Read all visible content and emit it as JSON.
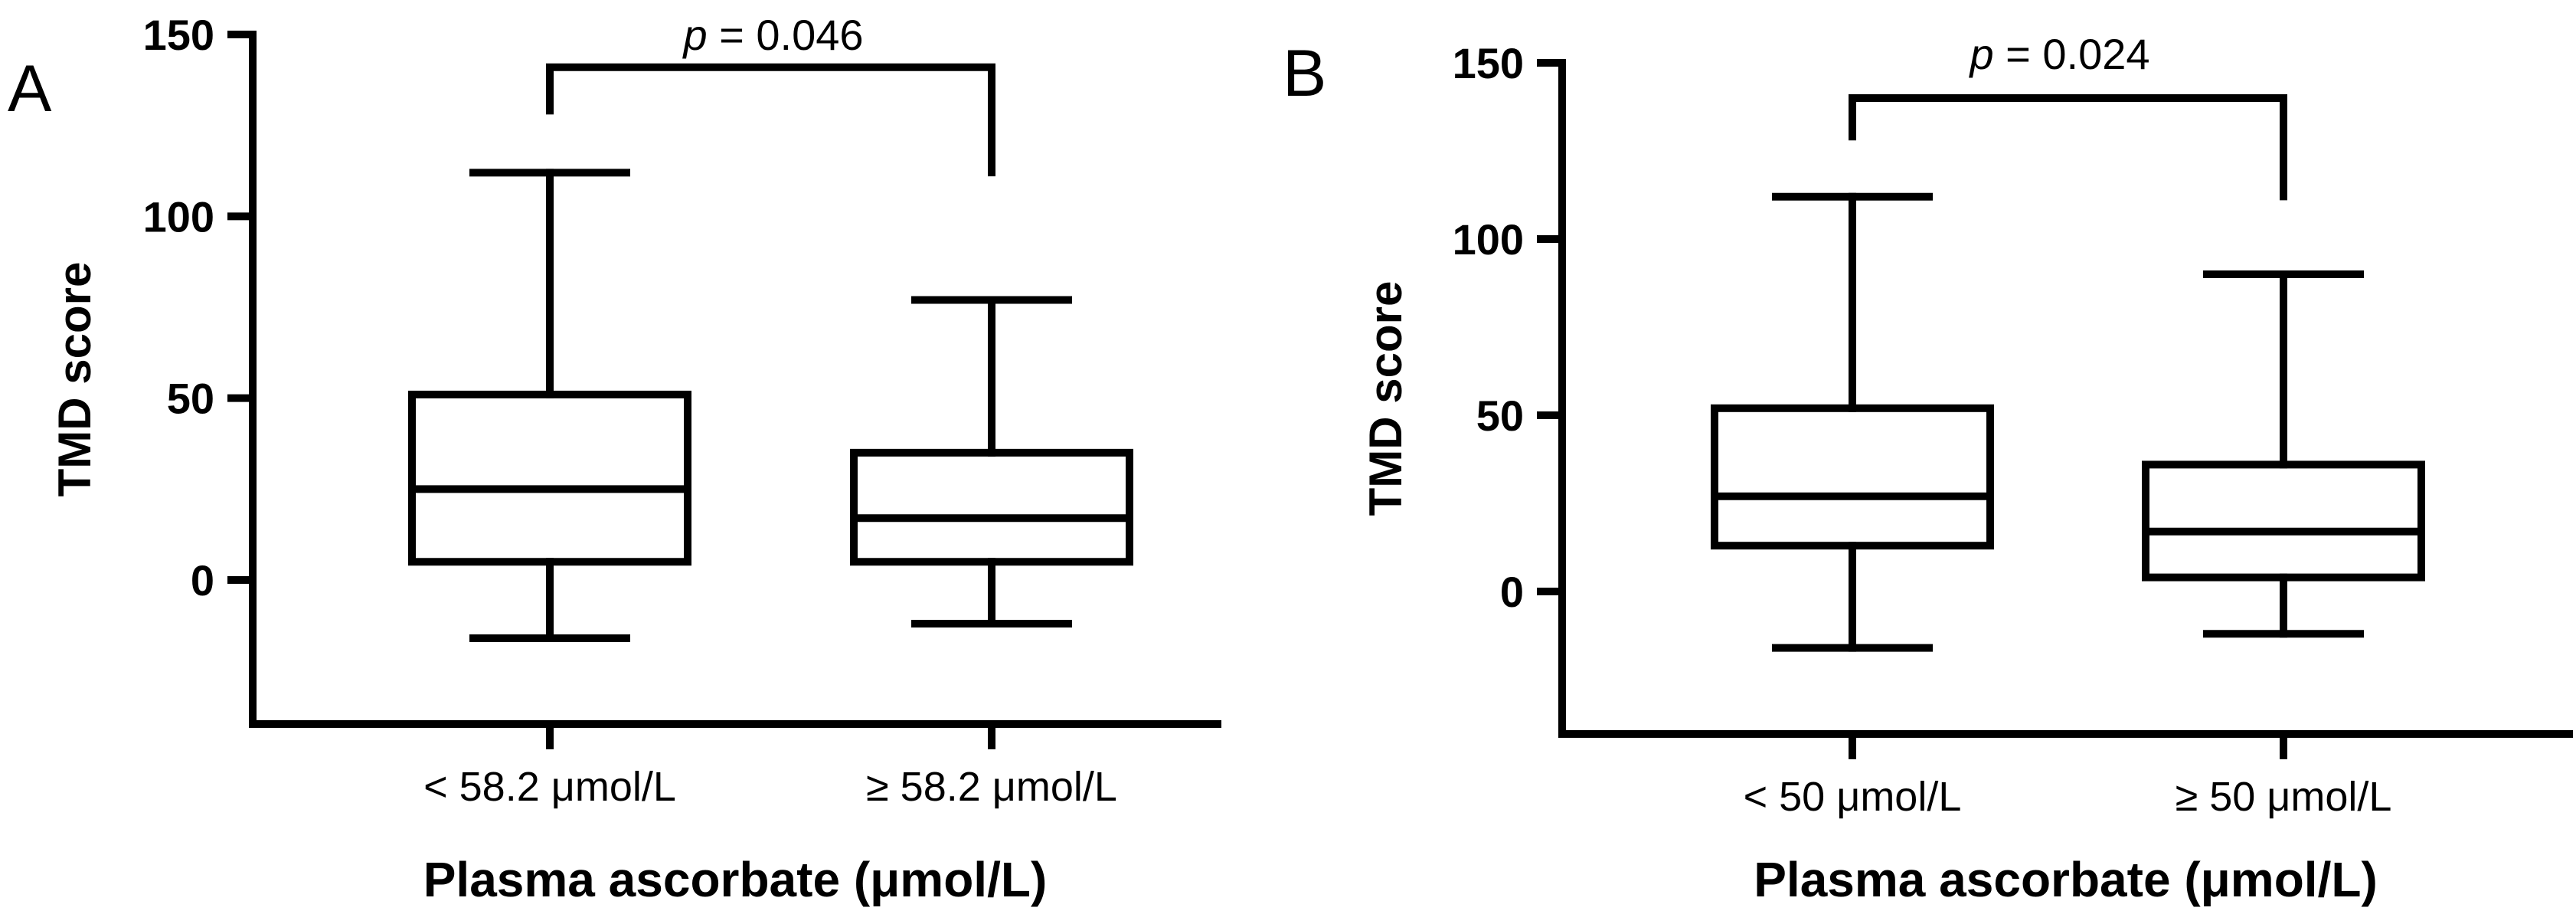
{
  "chart_data": [
    {
      "panel_label": "A",
      "type": "box",
      "ylabel": "TMD score",
      "xlabel": "Plasma ascorbate (μmol/L)",
      "ylim": [
        -40,
        150
      ],
      "yticks": [
        0,
        50,
        100,
        150
      ],
      "categories": [
        "< 58.2 μmol/L",
        "≥ 58.2 μmol/L"
      ],
      "boxes": [
        {
          "min": -16,
          "q1": 5,
          "median": 25,
          "q3": 51,
          "max": 112
        },
        {
          "min": -12,
          "q1": 5,
          "median": 17,
          "q3": 35,
          "max": 77
        }
      ],
      "annotation": {
        "p_symbol": "p",
        "p_value": "= 0.046",
        "bracket_top": 141,
        "left_end": 128,
        "right_end": 111
      }
    },
    {
      "panel_label": "B",
      "type": "box",
      "ylabel": "TMD score",
      "xlabel": "Plasma ascorbate (μmol/L)",
      "ylim": [
        -40,
        150
      ],
      "yticks": [
        0,
        50,
        100,
        150
      ],
      "categories": [
        "< 50 μmol/L",
        "≥ 50 μmol/L"
      ],
      "boxes": [
        {
          "min": -16,
          "q1": 13,
          "median": 27,
          "q3": 52,
          "max": 112
        },
        {
          "min": -12,
          "q1": 4,
          "median": 17,
          "q3": 36,
          "max": 90
        }
      ],
      "annotation": {
        "p_symbol": "p",
        "p_value": "= 0.024",
        "bracket_top": 140,
        "left_end": 128,
        "right_end": 111
      }
    }
  ]
}
